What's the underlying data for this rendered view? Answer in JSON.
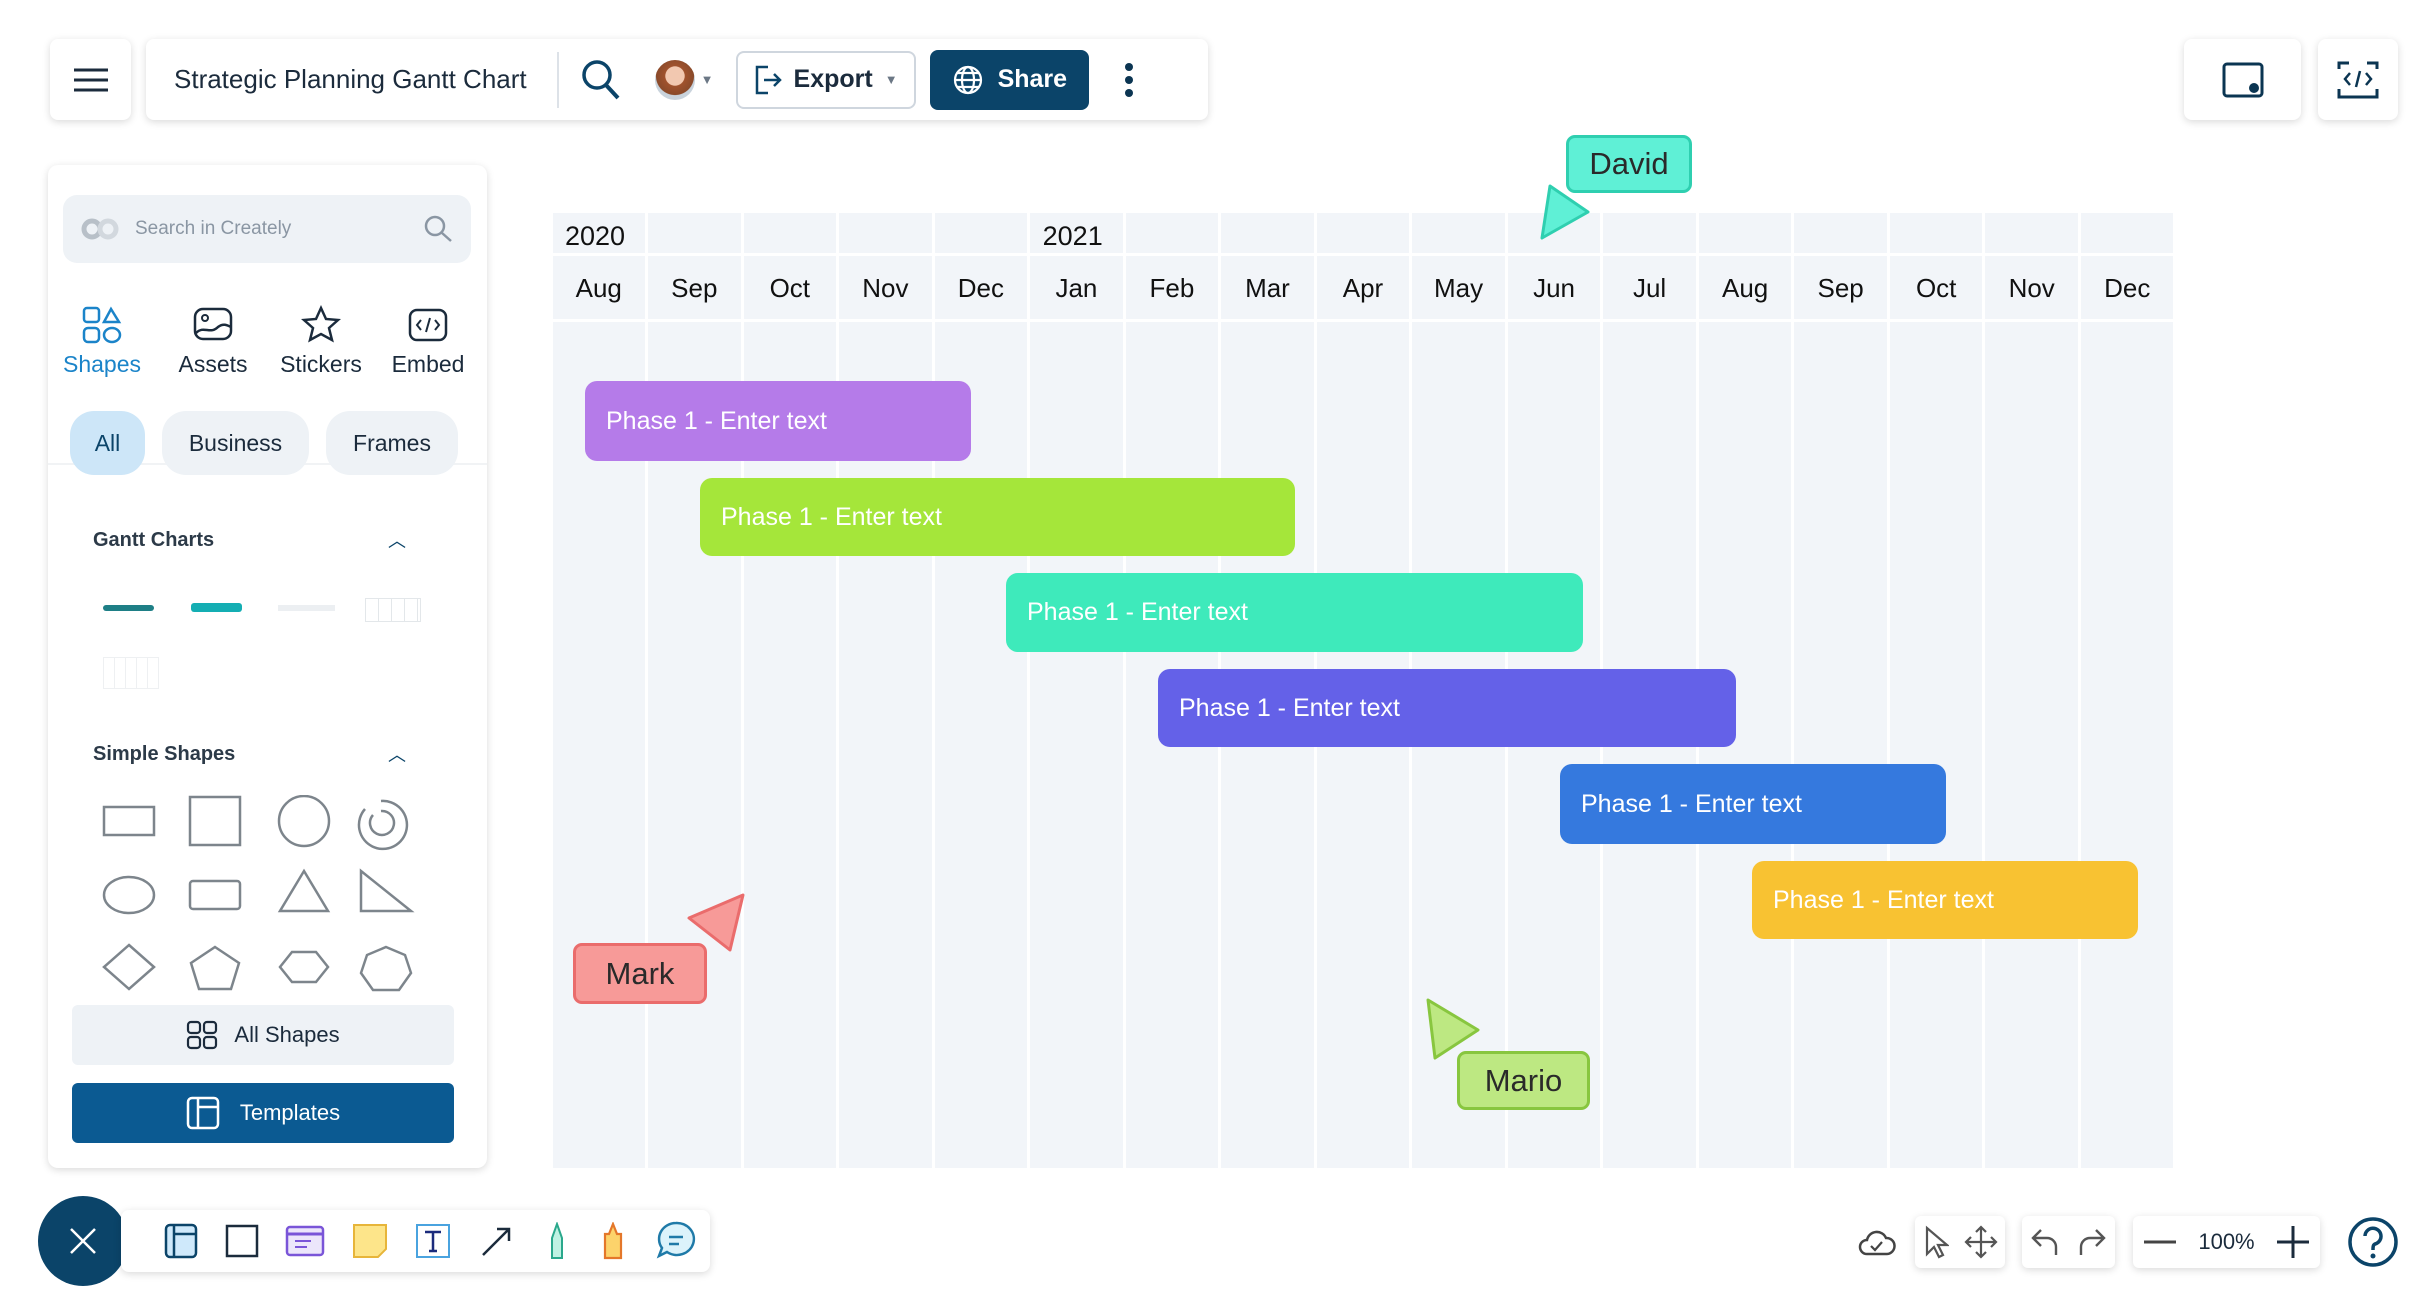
{
  "header": {
    "title": "Strategic Planning Gantt Chart",
    "export_label": "Export",
    "share_label": "Share"
  },
  "panel": {
    "search_placeholder": "Search in Creately",
    "tabs": [
      {
        "label": "Shapes",
        "active": true
      },
      {
        "label": "Assets"
      },
      {
        "label": "Stickers"
      },
      {
        "label": "Embed"
      }
    ],
    "filters": [
      {
        "label": "All",
        "active": true
      },
      {
        "label": "Business"
      },
      {
        "label": "Frames"
      }
    ],
    "sections": [
      {
        "title": "Gantt Charts"
      },
      {
        "title": "Simple Shapes"
      }
    ],
    "all_shapes_label": "All Shapes",
    "templates_label": "Templates"
  },
  "gantt": {
    "years": [
      {
        "label": "2020",
        "start_col": 0
      },
      {
        "label": "2021",
        "start_col": 5
      }
    ],
    "months": [
      "Aug",
      "Sep",
      "Oct",
      "Nov",
      "Dec",
      "Jan",
      "Feb",
      "Mar",
      "Apr",
      "May",
      "Jun",
      "Jul",
      "Aug",
      "Sep",
      "Oct",
      "Nov",
      "Dec"
    ],
    "bars": [
      {
        "label": "Phase 1  - Enter text",
        "color": "#b57be9"
      },
      {
        "label": "Phase 1  - Enter text",
        "color": "#a5e63a"
      },
      {
        "label": "Phase 1  - Enter text",
        "color": "#3eeabb"
      },
      {
        "label": "Phase 1  - Enter text",
        "color": "#6461e8"
      },
      {
        "label": "Phase 1  - Enter text",
        "color": "#3579de"
      },
      {
        "label": "Phase 1  - Enter text",
        "color": "#f8c232"
      }
    ]
  },
  "cursors": [
    {
      "name": "David",
      "color": "#5ff0d6",
      "border": "#2fcfb0"
    },
    {
      "name": "Mark",
      "color": "#f79a98",
      "border": "#ea6c6c"
    },
    {
      "name": "Mario",
      "color": "#bde882",
      "border": "#88c63f"
    }
  ],
  "zoom": {
    "level": "100%"
  }
}
